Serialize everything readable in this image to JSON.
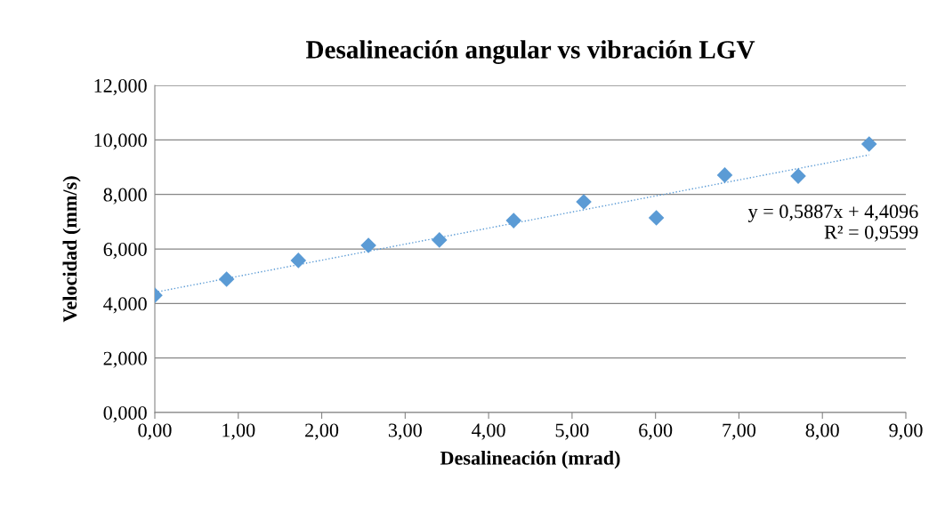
{
  "chart_data": {
    "type": "scatter",
    "title": "Desalineación angular vs vibración LGV",
    "xlabel": "Desalineación (mrad)",
    "ylabel": "Velocidad (mm/s)",
    "series": [
      {
        "color": "#5b9bd5",
        "marker": "diamond",
        "x": [
          0,
          0.86,
          1.72,
          2.56,
          3.41,
          4.3,
          5.14,
          6.01,
          6.83,
          7.71,
          8.56
        ],
        "values": [
          4.3,
          4.89,
          5.58,
          6.13,
          6.33,
          7.04,
          7.73,
          7.14,
          8.71,
          8.67,
          9.85
        ]
      },
      {
        "type": "line",
        "color": "#5b9bd5",
        "line_style": "dotted",
        "marker": "none",
        "x": [
          0,
          8.56
        ],
        "values": [
          4.41,
          9.45
        ]
      }
    ],
    "annotations": [
      {
        "text": "y = 0,5887x + 4,4096\nR² = 0,9599",
        "x": 8.56,
        "y": 9.45
      }
    ],
    "xlim": [
      0,
      9
    ],
    "ylim": [
      0,
      12
    ],
    "xticks": [
      {
        "value": 0,
        "label": "0,00"
      },
      {
        "value": 1,
        "label": "1,00"
      },
      {
        "value": 2,
        "label": "2,00"
      },
      {
        "value": 3,
        "label": "3,00"
      },
      {
        "value": 4,
        "label": "4,00"
      },
      {
        "value": 5,
        "label": "5,00"
      },
      {
        "value": 6,
        "label": "6,00"
      },
      {
        "value": 7,
        "label": "7,00"
      },
      {
        "value": 8,
        "label": "8,00"
      },
      {
        "value": 9,
        "label": "9,00"
      }
    ],
    "yticks": [
      {
        "value": 0,
        "label": "0,000"
      },
      {
        "value": 2,
        "label": "2,000"
      },
      {
        "value": 4,
        "label": "4,000"
      },
      {
        "value": 6,
        "label": "6,000"
      },
      {
        "value": 8,
        "label": "8,000"
      },
      {
        "value": 10,
        "label": "10,000"
      },
      {
        "value": 12,
        "label": "12,000"
      }
    ],
    "grid": "y",
    "legend": false
  }
}
